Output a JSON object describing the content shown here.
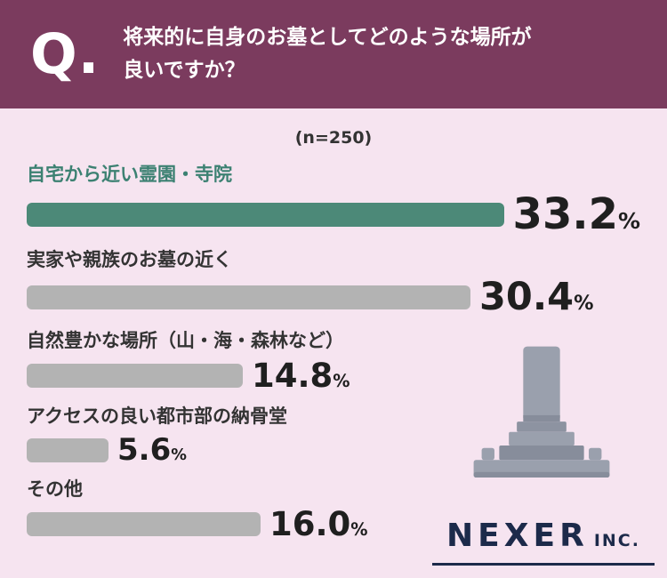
{
  "header": {
    "q_label": "Q.",
    "title_line1": "将来的に自身のお墓としてどのような場所が",
    "title_line2": "良いですか？"
  },
  "sample": {
    "label": "(n=250)"
  },
  "chart_data": {
    "type": "bar",
    "orientation": "horizontal",
    "title": "将来的に自身のお墓としてどのような場所が良いですか？",
    "sample_size_label": "(n=250)",
    "categories": [
      "自宅から近い霊園・寺院",
      "実家や親族のお墓の近く",
      "自然豊かな場所（山・海・森林など）",
      "アクセスの良い都市部の納骨堂",
      "その他"
    ],
    "values": [
      33.2,
      30.4,
      14.8,
      5.6,
      16.0
    ],
    "value_labels": [
      "33.2",
      "30.4",
      "14.8",
      "5.6",
      "16.0"
    ],
    "unit": "%",
    "xlim": [
      0,
      35
    ],
    "grid": false,
    "legend": "none",
    "highlight_index": 0,
    "colors": {
      "highlight_bar": "#4c8978",
      "default_bar": "#b3b3b3",
      "highlight_label": "#3c8172",
      "value_text": "#1f1f1f",
      "header_bg": "#7b3b5e",
      "body_bg": "#f6e4f0",
      "brand": "#1c2a4a"
    }
  },
  "footer": {
    "brand": "NEXER",
    "brand_suffix": "INC."
  }
}
